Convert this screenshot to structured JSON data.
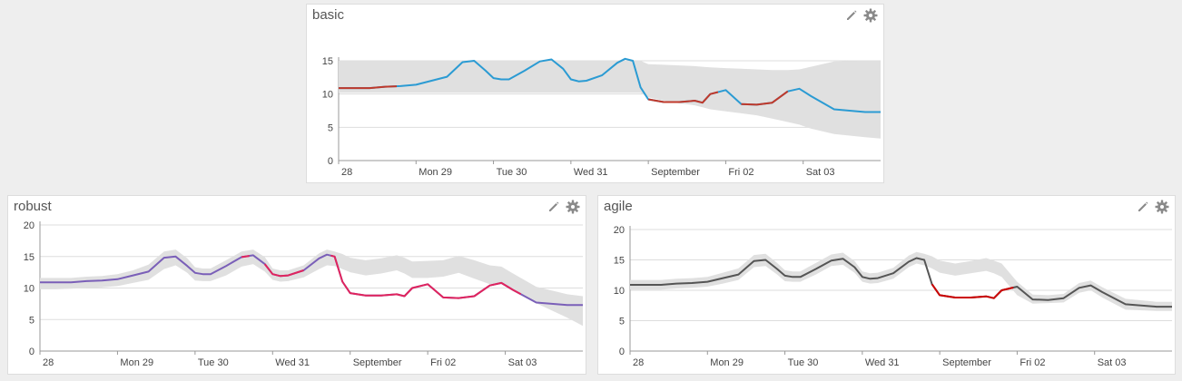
{
  "panels": [
    {
      "id": "basic",
      "title": "basic",
      "icons": [
        "pencil-icon",
        "gear-icon"
      ]
    },
    {
      "id": "robust",
      "title": "robust",
      "icons": [
        "pencil-icon",
        "gear-icon"
      ]
    },
    {
      "id": "agile",
      "title": "agile",
      "icons": [
        "pencil-icon",
        "gear-icon"
      ]
    }
  ],
  "chart_data": [
    {
      "type": "line",
      "panel": "basic",
      "title": "",
      "xlabel": "",
      "ylabel": "",
      "grid": true,
      "xlim": [
        0,
        7
      ],
      "ylim": [
        0,
        15
      ],
      "yticks": [
        0,
        5,
        10,
        15
      ],
      "xticks": [
        {
          "x": 0,
          "label": "28"
        },
        {
          "x": 1,
          "label": "Mon 29"
        },
        {
          "x": 2,
          "label": "Tue 30"
        },
        {
          "x": 3,
          "label": "Wed 31"
        },
        {
          "x": 4,
          "label": "September"
        },
        {
          "x": 5,
          "label": "Fri 02"
        },
        {
          "x": 6,
          "label": "Sat 03"
        }
      ],
      "series_color": "#2b9bd3",
      "anomaly_color": "#c0392b",
      "band_color": "#e0e0e0",
      "x": [
        0,
        0.2,
        0.4,
        0.6,
        0.8,
        1.0,
        1.2,
        1.4,
        1.6,
        1.75,
        1.9,
        2.0,
        2.1,
        2.2,
        2.4,
        2.6,
        2.75,
        2.9,
        3.0,
        3.1,
        3.2,
        3.4,
        3.6,
        3.7,
        3.8,
        3.9,
        4.0,
        4.2,
        4.4,
        4.6,
        4.7,
        4.8,
        5.0,
        5.2,
        5.4,
        5.6,
        5.8,
        5.95,
        6.1,
        6.4,
        6.8,
        7.0
      ],
      "values": [
        10.9,
        10.9,
        10.9,
        11.1,
        11.2,
        11.4,
        12.0,
        12.6,
        14.8,
        15.0,
        13.5,
        12.4,
        12.2,
        12.2,
        13.5,
        14.9,
        15.2,
        13.8,
        12.2,
        11.9,
        12.0,
        12.8,
        14.7,
        15.3,
        15.0,
        11.0,
        9.2,
        8.8,
        8.8,
        9.0,
        8.7,
        10.0,
        10.6,
        8.5,
        8.4,
        8.7,
        10.4,
        10.8,
        9.7,
        7.7,
        7.3,
        7.3
      ],
      "anomalies": [
        [
          0,
          0.75
        ],
        [
          4.0,
          4.9
        ],
        [
          5.2,
          5.8
        ]
      ],
      "band_lower": [
        10.2,
        10.2,
        10.2,
        10.2,
        10.2,
        10.2,
        10.2,
        10.2,
        10.2,
        10.2,
        10.2,
        10.2,
        10.2,
        10.2,
        10.2,
        10.2,
        10.2,
        10.2,
        10.2,
        10.2,
        10.2,
        10.2,
        10.2,
        10.2,
        10.2,
        10.2,
        9.5,
        9.0,
        8.6,
        8.3,
        8.0,
        7.7,
        7.4,
        7.1,
        6.8,
        6.3,
        5.8,
        5.4,
        4.8,
        4.0,
        3.5,
        3.3
      ],
      "band_upper": [
        15.0,
        15.0,
        15.0,
        15.0,
        15.0,
        15.0,
        15.0,
        15.0,
        15.0,
        15.0,
        15.0,
        15.0,
        15.0,
        15.0,
        15.0,
        15.0,
        15.0,
        15.0,
        15.0,
        15.0,
        15.0,
        15.0,
        15.0,
        15.0,
        15.0,
        15.0,
        14.5,
        14.4,
        14.3,
        14.2,
        14.1,
        14.0,
        13.9,
        13.8,
        13.7,
        13.6,
        13.6,
        13.7,
        14.1,
        14.9,
        15.0,
        15.0
      ]
    },
    {
      "type": "line",
      "panel": "robust",
      "title": "",
      "xlabel": "",
      "ylabel": "",
      "grid": true,
      "xlim": [
        0,
        7
      ],
      "ylim": [
        0,
        20
      ],
      "yticks": [
        0,
        5,
        10,
        15,
        20
      ],
      "xticks": [
        {
          "x": 0,
          "label": "28"
        },
        {
          "x": 1,
          "label": "Mon 29"
        },
        {
          "x": 2,
          "label": "Tue 30"
        },
        {
          "x": 3,
          "label": "Wed 31"
        },
        {
          "x": 4,
          "label": "September"
        },
        {
          "x": 5,
          "label": "Fri 02"
        },
        {
          "x": 6,
          "label": "Sat 03"
        }
      ],
      "series_color": "#7a5fb8",
      "anomaly_color": "#e0245e",
      "band_color": "#e0e0e0",
      "x": [
        0,
        0.2,
        0.4,
        0.6,
        0.8,
        1.0,
        1.2,
        1.4,
        1.6,
        1.75,
        1.9,
        2.0,
        2.1,
        2.2,
        2.4,
        2.6,
        2.75,
        2.9,
        3.0,
        3.1,
        3.2,
        3.4,
        3.6,
        3.7,
        3.8,
        3.9,
        4.0,
        4.2,
        4.4,
        4.6,
        4.7,
        4.8,
        5.0,
        5.2,
        5.4,
        5.6,
        5.8,
        5.95,
        6.1,
        6.4,
        6.8,
        7.0
      ],
      "values": [
        10.9,
        10.9,
        10.9,
        11.1,
        11.2,
        11.4,
        12.0,
        12.6,
        14.8,
        15.0,
        13.5,
        12.4,
        12.2,
        12.2,
        13.5,
        14.9,
        15.2,
        13.8,
        12.2,
        11.9,
        12.0,
        12.8,
        14.7,
        15.3,
        15.0,
        11.0,
        9.2,
        8.8,
        8.8,
        9.0,
        8.7,
        10.0,
        10.6,
        8.5,
        8.4,
        8.7,
        10.4,
        10.8,
        9.7,
        7.7,
        7.3,
        7.3
      ],
      "anomalies": [
        [
          2.6,
          2.7
        ],
        [
          2.9,
          3.4
        ],
        [
          3.75,
          6.2
        ]
      ],
      "band_lower": [
        9.8,
        9.8,
        9.9,
        10.0,
        10.1,
        10.3,
        10.8,
        11.3,
        13.0,
        13.6,
        12.4,
        11.2,
        11.1,
        11.1,
        12.0,
        13.4,
        13.8,
        12.6,
        11.3,
        11.0,
        11.1,
        11.7,
        13.0,
        13.6,
        13.5,
        13.0,
        12.5,
        12.0,
        12.3,
        12.8,
        12.3,
        11.6,
        11.6,
        11.8,
        12.4,
        11.5,
        10.6,
        10.6,
        9.6,
        7.6,
        5.3,
        4.0
      ],
      "band_upper": [
        11.6,
        11.6,
        11.6,
        11.8,
        11.9,
        12.2,
        12.8,
        13.7,
        15.8,
        16.1,
        14.7,
        13.3,
        13.1,
        13.1,
        14.4,
        15.8,
        16.1,
        14.9,
        13.1,
        12.8,
        12.8,
        13.6,
        15.5,
        16.1,
        15.8,
        15.4,
        14.8,
        14.4,
        14.7,
        15.2,
        14.8,
        14.2,
        14.3,
        14.4,
        15.1,
        14.4,
        13.6,
        13.4,
        12.3,
        10.2,
        9.0,
        8.7
      ]
    },
    {
      "type": "line",
      "panel": "agile",
      "title": "",
      "xlabel": "",
      "ylabel": "",
      "grid": true,
      "xlim": [
        0,
        7
      ],
      "ylim": [
        0,
        20
      ],
      "yticks": [
        0,
        5,
        10,
        15,
        20
      ],
      "xticks": [
        {
          "x": 0,
          "label": "28"
        },
        {
          "x": 1,
          "label": "Mon 29"
        },
        {
          "x": 2,
          "label": "Tue 30"
        },
        {
          "x": 3,
          "label": "Wed 31"
        },
        {
          "x": 4,
          "label": "September"
        },
        {
          "x": 5,
          "label": "Fri 02"
        },
        {
          "x": 6,
          "label": "Sat 03"
        }
      ],
      "series_color": "#555555",
      "anomaly_color": "#cc0000",
      "band_color": "#e0e0e0",
      "x": [
        0,
        0.2,
        0.4,
        0.6,
        0.8,
        1.0,
        1.2,
        1.4,
        1.6,
        1.75,
        1.9,
        2.0,
        2.1,
        2.2,
        2.4,
        2.6,
        2.75,
        2.9,
        3.0,
        3.1,
        3.2,
        3.4,
        3.6,
        3.7,
        3.8,
        3.9,
        4.0,
        4.2,
        4.4,
        4.6,
        4.7,
        4.8,
        5.0,
        5.2,
        5.4,
        5.6,
        5.8,
        5.95,
        6.1,
        6.4,
        6.8,
        7.0
      ],
      "values": [
        10.9,
        10.9,
        10.9,
        11.1,
        11.2,
        11.4,
        12.0,
        12.6,
        14.8,
        15.0,
        13.5,
        12.4,
        12.2,
        12.2,
        13.5,
        14.9,
        15.2,
        13.8,
        12.2,
        11.9,
        12.0,
        12.8,
        14.7,
        15.3,
        15.0,
        11.0,
        9.2,
        8.8,
        8.8,
        9.0,
        8.7,
        10.0,
        10.6,
        8.5,
        8.4,
        8.7,
        10.4,
        10.8,
        9.7,
        7.7,
        7.3,
        7.3
      ],
      "anomalies": [
        [
          3.9,
          4.95
        ]
      ],
      "band_lower": [
        10.1,
        10.1,
        10.1,
        10.3,
        10.4,
        10.6,
        11.1,
        11.7,
        13.8,
        14.0,
        12.6,
        11.5,
        11.4,
        11.4,
        12.6,
        14.0,
        14.2,
        12.9,
        11.4,
        11.1,
        11.2,
        11.9,
        13.8,
        14.4,
        14.1,
        13.6,
        12.9,
        12.4,
        12.8,
        13.2,
        12.8,
        12.2,
        9.2,
        7.8,
        7.9,
        8.0,
        9.6,
        10.0,
        8.8,
        6.8,
        6.6,
        6.6
      ],
      "band_upper": [
        11.7,
        11.7,
        11.7,
        11.9,
        12.0,
        12.2,
        12.9,
        13.6,
        15.8,
        16.0,
        14.5,
        13.3,
        13.1,
        13.1,
        14.5,
        15.9,
        16.2,
        14.8,
        13.1,
        12.8,
        12.9,
        13.7,
        15.7,
        16.3,
        16.0,
        15.6,
        14.9,
        14.4,
        14.8,
        15.3,
        14.9,
        14.4,
        11.4,
        9.3,
        9.2,
        9.4,
        11.2,
        11.6,
        10.5,
        8.6,
        8.1,
        8.1
      ]
    }
  ]
}
